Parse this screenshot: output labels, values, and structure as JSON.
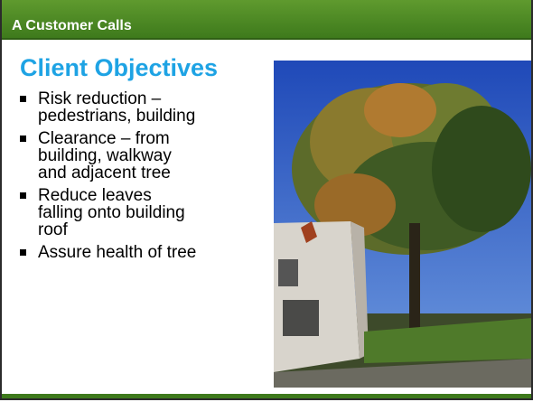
{
  "header": {
    "title": "A Customer Calls"
  },
  "slide": {
    "title": "Client Objectives",
    "bullets": [
      [
        "Risk reduction –",
        "pedestrians, building"
      ],
      [
        "Clearance – from",
        "building, walkway",
        "and adjacent tree"
      ],
      [
        "Reduce leaves",
        "falling onto building",
        "roof"
      ],
      [
        "Assure health of tree"
      ]
    ]
  }
}
